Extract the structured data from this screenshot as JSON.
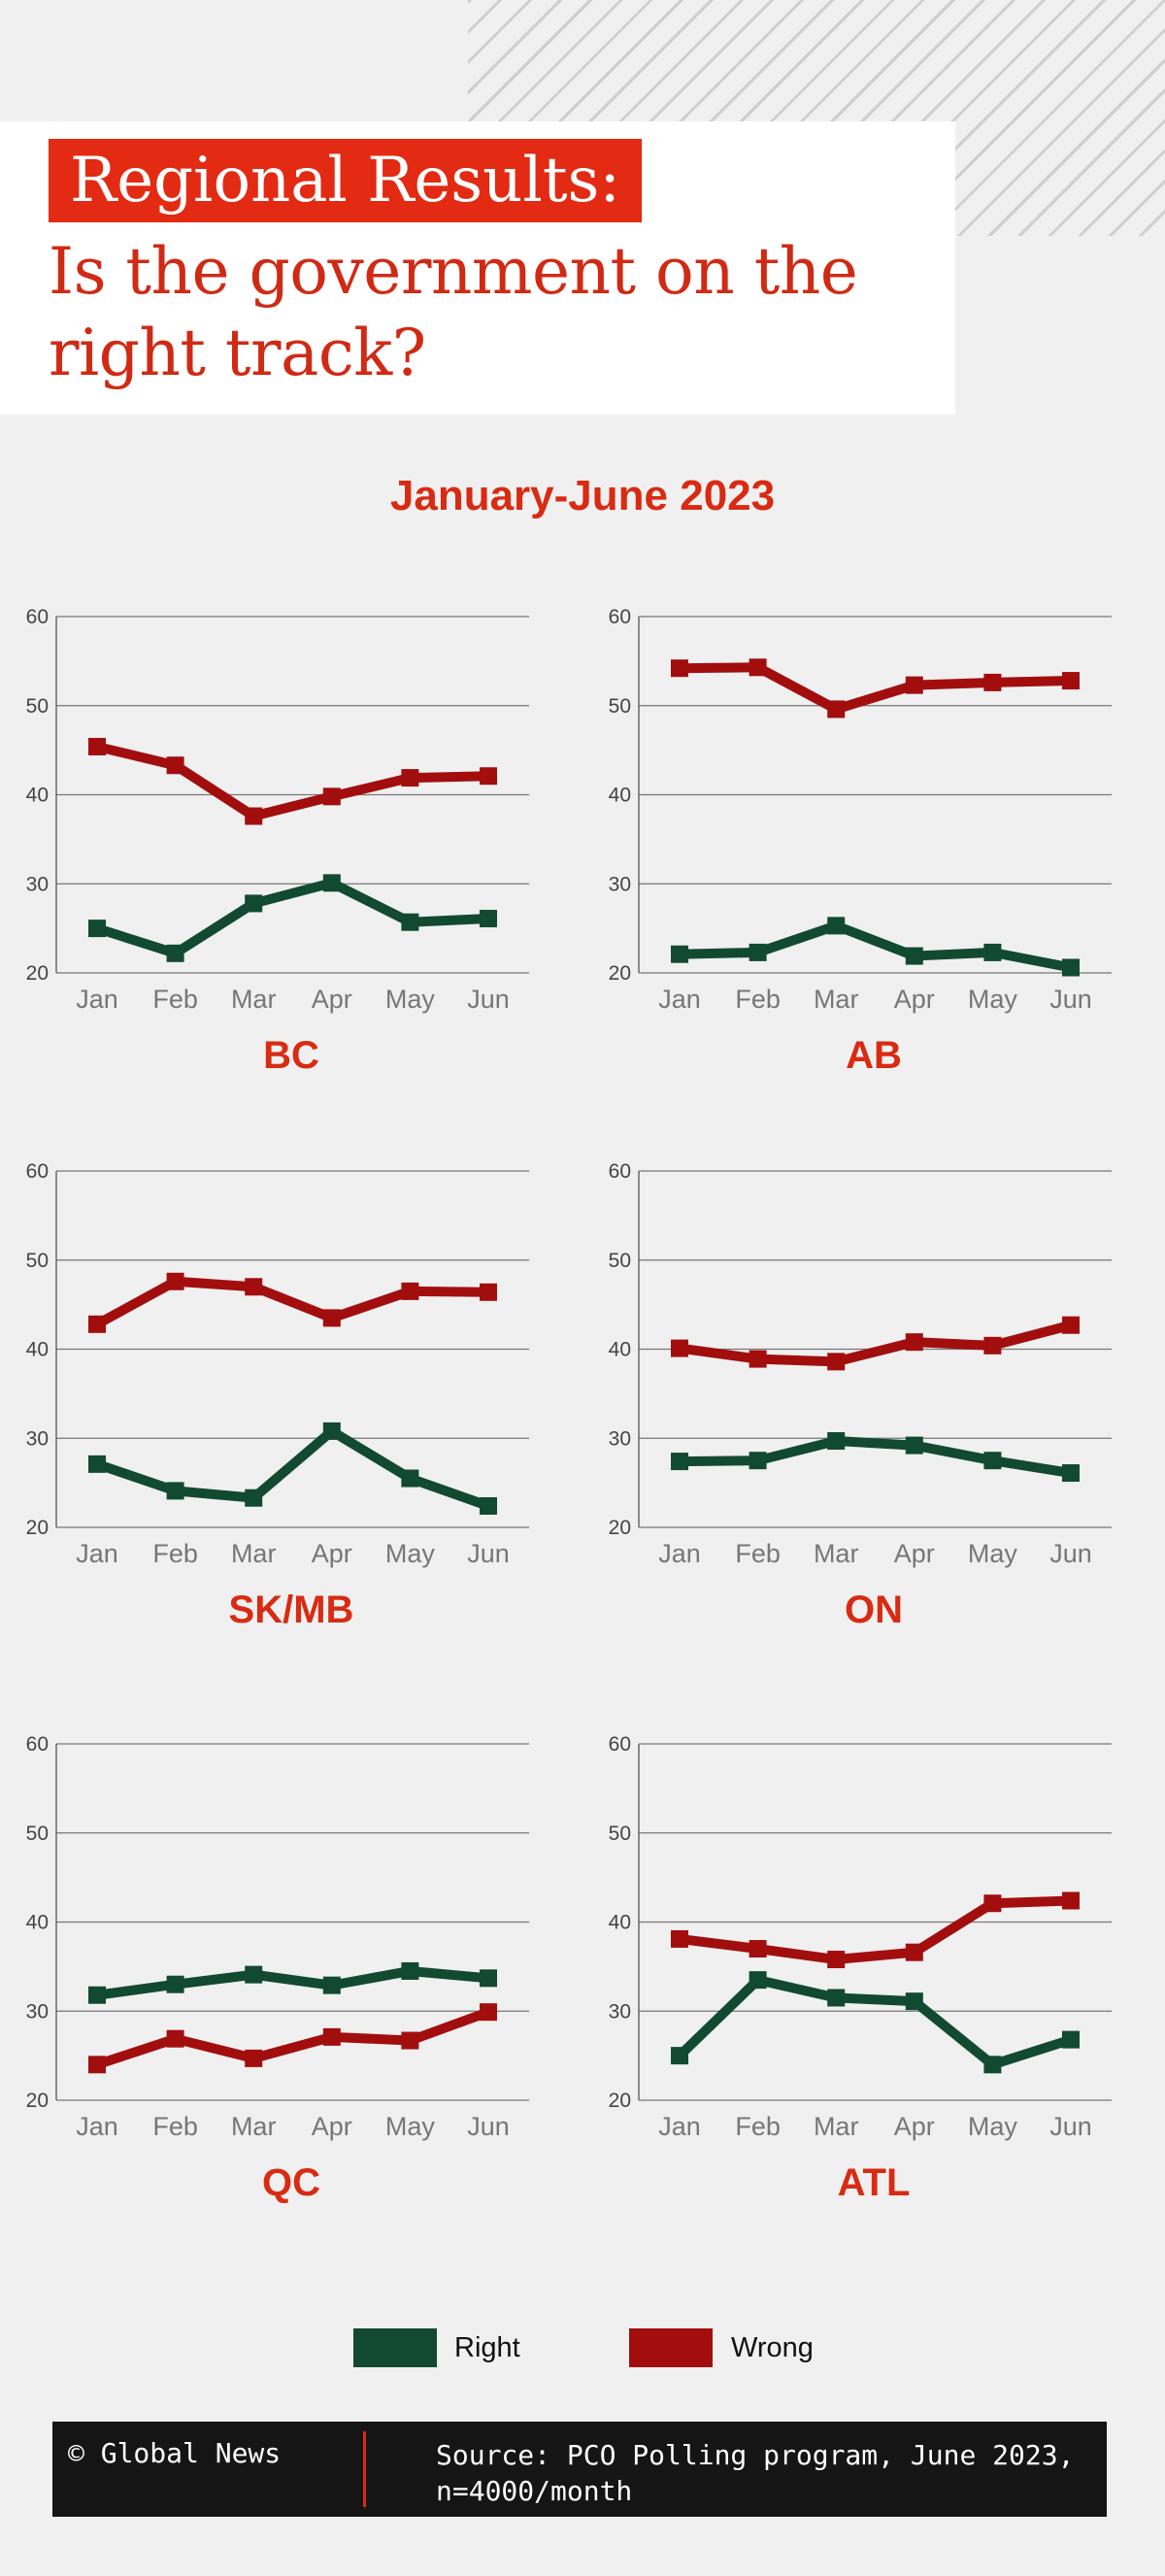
{
  "header": {
    "tag": "Regional Results:",
    "question": "Is the government on the right track?",
    "period": "January-June 2023"
  },
  "colors": {
    "right": "#114a30",
    "wrong": "#a20e0e",
    "accent": "#e32a12"
  },
  "chart_data": [
    {
      "type": "line",
      "title": "BC",
      "categories": [
        "Jan",
        "Feb",
        "Mar",
        "Apr",
        "May",
        "Jun"
      ],
      "yticks": [
        20,
        30,
        40,
        50,
        60
      ],
      "ylim": [
        20,
        60
      ],
      "grid": true,
      "series": [
        {
          "name": "Right",
          "values": [
            25,
            22.2,
            27.8,
            30.1,
            25.7,
            26.1
          ]
        },
        {
          "name": "Wrong",
          "values": [
            45.4,
            43.3,
            37.6,
            39.8,
            41.9,
            42.1
          ]
        }
      ]
    },
    {
      "type": "line",
      "title": "AB",
      "categories": [
        "Jan",
        "Feb",
        "Mar",
        "Apr",
        "May",
        "Jun"
      ],
      "yticks": [
        20,
        30,
        40,
        50,
        60
      ],
      "ylim": [
        20,
        60
      ],
      "grid": true,
      "series": [
        {
          "name": "Right",
          "values": [
            22.1,
            22.3,
            25.3,
            21.9,
            22.3,
            20.6
          ]
        },
        {
          "name": "Wrong",
          "values": [
            54.2,
            54.3,
            49.6,
            52.3,
            52.6,
            52.8
          ]
        }
      ]
    },
    {
      "type": "line",
      "title": "SK/MB",
      "categories": [
        "Jan",
        "Feb",
        "Mar",
        "Apr",
        "May",
        "Jun"
      ],
      "yticks": [
        20,
        30,
        40,
        50,
        60
      ],
      "ylim": [
        20,
        60
      ],
      "grid": true,
      "series": [
        {
          "name": "Right",
          "values": [
            27.1,
            24.1,
            23.3,
            30.8,
            25.5,
            22.4
          ]
        },
        {
          "name": "Wrong",
          "values": [
            42.8,
            47.6,
            47.0,
            43.5,
            46.5,
            46.4
          ]
        }
      ]
    },
    {
      "type": "line",
      "title": "ON",
      "categories": [
        "Jan",
        "Feb",
        "Mar",
        "Apr",
        "May",
        "Jun"
      ],
      "yticks": [
        20,
        30,
        40,
        50,
        60
      ],
      "ylim": [
        20,
        60
      ],
      "grid": true,
      "series": [
        {
          "name": "Right",
          "values": [
            27.4,
            27.5,
            29.7,
            29.2,
            27.5,
            26.1
          ]
        },
        {
          "name": "Wrong",
          "values": [
            40.1,
            38.9,
            38.6,
            40.8,
            40.4,
            42.7
          ]
        }
      ]
    },
    {
      "type": "line",
      "title": "QC",
      "categories": [
        "Jan",
        "Feb",
        "Mar",
        "Apr",
        "May",
        "Jun"
      ],
      "yticks": [
        20,
        30,
        40,
        50,
        60
      ],
      "ylim": [
        20,
        60
      ],
      "grid": true,
      "series": [
        {
          "name": "Right",
          "values": [
            31.8,
            33.0,
            34.1,
            32.9,
            34.5,
            33.7
          ]
        },
        {
          "name": "Wrong",
          "values": [
            24.0,
            26.9,
            24.7,
            27.1,
            26.7,
            29.9
          ]
        }
      ]
    },
    {
      "type": "line",
      "title": "ATL",
      "categories": [
        "Jan",
        "Feb",
        "Mar",
        "Apr",
        "May",
        "Jun"
      ],
      "yticks": [
        20,
        30,
        40,
        50,
        60
      ],
      "ylim": [
        20,
        60
      ],
      "grid": true,
      "series": [
        {
          "name": "Right",
          "values": [
            25.0,
            33.5,
            31.5,
            31.1,
            24.0,
            26.8
          ]
        },
        {
          "name": "Wrong",
          "values": [
            38.1,
            37.0,
            35.8,
            36.6,
            42.1,
            42.4
          ]
        }
      ]
    }
  ],
  "legend": {
    "right_label": "Right",
    "wrong_label": "Wrong"
  },
  "footer": {
    "credit": "© Global News",
    "source": "Source: PCO Polling program, June 2023, n=4000/month"
  }
}
